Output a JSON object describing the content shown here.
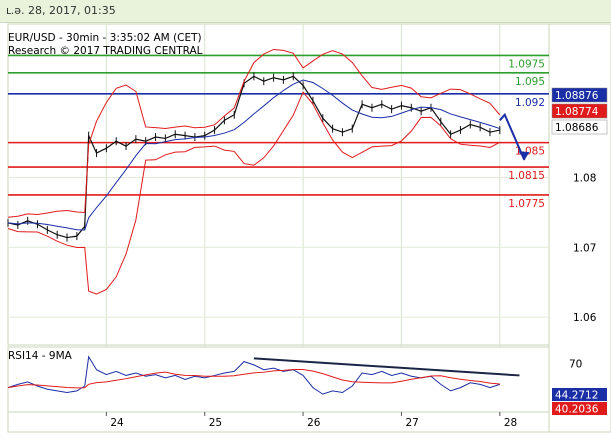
{
  "header": {
    "date": "ւ.ə. 28, 2017, 01:35"
  },
  "chart_data": {
    "type": "line",
    "title": "EUR/USD - 30min - 3:35:02 AM (CET)",
    "subtitle": "Research © 2017 TRADING CENTRAL",
    "ylim": [
      1.056,
      1.102
    ],
    "y_ticks": [
      1.06,
      1.07,
      1.08
    ],
    "x_ticks": [
      "24",
      "25",
      "26",
      "27",
      "28"
    ],
    "price_series": [
      {
        "x": 0.0,
        "y": 1.0735
      },
      {
        "x": 0.1,
        "y": 1.0732
      },
      {
        "x": 0.2,
        "y": 1.0738
      },
      {
        "x": 0.3,
        "y": 1.0733
      },
      {
        "x": 0.4,
        "y": 1.0725
      },
      {
        "x": 0.5,
        "y": 1.0718
      },
      {
        "x": 0.6,
        "y": 1.0714
      },
      {
        "x": 0.7,
        "y": 1.0716
      },
      {
        "x": 0.78,
        "y": 1.073
      },
      {
        "x": 0.82,
        "y": 1.086
      },
      {
        "x": 0.9,
        "y": 1.0835
      },
      {
        "x": 1.0,
        "y": 1.0842
      },
      {
        "x": 1.1,
        "y": 1.0852
      },
      {
        "x": 1.2,
        "y": 1.0845
      },
      {
        "x": 1.3,
        "y": 1.0855
      },
      {
        "x": 1.4,
        "y": 1.0852
      },
      {
        "x": 1.5,
        "y": 1.0858
      },
      {
        "x": 1.6,
        "y": 1.0856
      },
      {
        "x": 1.7,
        "y": 1.0862
      },
      {
        "x": 1.8,
        "y": 1.086
      },
      {
        "x": 1.9,
        "y": 1.0858
      },
      {
        "x": 2.0,
        "y": 1.086
      },
      {
        "x": 2.1,
        "y": 1.0868
      },
      {
        "x": 2.2,
        "y": 1.0882
      },
      {
        "x": 2.3,
        "y": 1.089
      },
      {
        "x": 2.4,
        "y": 1.0935
      },
      {
        "x": 2.5,
        "y": 1.0945
      },
      {
        "x": 2.6,
        "y": 1.0938
      },
      {
        "x": 2.7,
        "y": 1.0943
      },
      {
        "x": 2.8,
        "y": 1.094
      },
      {
        "x": 2.9,
        "y": 1.0945
      },
      {
        "x": 3.0,
        "y": 1.0932
      },
      {
        "x": 3.1,
        "y": 1.091
      },
      {
        "x": 3.2,
        "y": 1.0885
      },
      {
        "x": 3.3,
        "y": 1.087
      },
      {
        "x": 3.4,
        "y": 1.0865
      },
      {
        "x": 3.5,
        "y": 1.087
      },
      {
        "x": 3.6,
        "y": 1.0905
      },
      {
        "x": 3.7,
        "y": 1.09
      },
      {
        "x": 3.8,
        "y": 1.0905
      },
      {
        "x": 3.9,
        "y": 1.0898
      },
      {
        "x": 4.0,
        "y": 1.0903
      },
      {
        "x": 4.1,
        "y": 1.09
      },
      {
        "x": 4.2,
        "y": 1.0895
      },
      {
        "x": 4.3,
        "y": 1.09
      },
      {
        "x": 4.4,
        "y": 1.088
      },
      {
        "x": 4.5,
        "y": 1.0862
      },
      {
        "x": 4.6,
        "y": 1.0868
      },
      {
        "x": 4.7,
        "y": 1.0876
      },
      {
        "x": 4.8,
        "y": 1.0872
      },
      {
        "x": 4.9,
        "y": 1.0865
      },
      {
        "x": 5.0,
        "y": 1.0868
      }
    ],
    "levels": [
      {
        "label": "1.0975",
        "value": 1.0975,
        "color": "#2e9e2e"
      },
      {
        "label": "1.095",
        "value": 1.095,
        "color": "#2e9e2e"
      },
      {
        "label": "1.092",
        "value": 1.092,
        "color": "#1a2ea6"
      },
      {
        "label": "1.085",
        "value": 1.085,
        "color": "#e01b1b"
      },
      {
        "label": "1.0815",
        "value": 1.0815,
        "color": "#e01b1b"
      },
      {
        "label": "1.0775",
        "value": 1.0775,
        "color": "#e01b1b"
      }
    ],
    "price_badges": [
      {
        "label": "1.08876",
        "color": "#1a2ea6",
        "text_color": "#ffffff"
      },
      {
        "label": "1.08774",
        "color": "#e01b1b",
        "text_color": "#ffffff"
      },
      {
        "label": "1.08686",
        "color": "#ffffff",
        "text_color": "#000000"
      }
    ],
    "forecast_arrow": {
      "from": {
        "x": 5.05,
        "y": 1.089
      },
      "to": {
        "x": 5.25,
        "y": 1.0825
      },
      "color": "#1a2ea6"
    },
    "rsi": {
      "title": "RSI14 - 9MA",
      "ylim": [
        10,
        90
      ],
      "y_ticks": [
        70
      ],
      "badges": [
        {
          "label": "44.2712",
          "color": "#1a2ea6",
          "text_color": "#ffffff"
        },
        {
          "label": "40.2036",
          "color": "#e01b1b",
          "text_color": "#ffffff"
        }
      ],
      "series": [
        {
          "x": 0.0,
          "y": 40
        },
        {
          "x": 0.1,
          "y": 44
        },
        {
          "x": 0.2,
          "y": 47
        },
        {
          "x": 0.3,
          "y": 42
        },
        {
          "x": 0.4,
          "y": 38
        },
        {
          "x": 0.5,
          "y": 36
        },
        {
          "x": 0.6,
          "y": 34
        },
        {
          "x": 0.7,
          "y": 36
        },
        {
          "x": 0.78,
          "y": 42
        },
        {
          "x": 0.82,
          "y": 78
        },
        {
          "x": 0.9,
          "y": 62
        },
        {
          "x": 1.0,
          "y": 56
        },
        {
          "x": 1.1,
          "y": 60
        },
        {
          "x": 1.2,
          "y": 55
        },
        {
          "x": 1.3,
          "y": 58
        },
        {
          "x": 1.4,
          "y": 54
        },
        {
          "x": 1.5,
          "y": 56
        },
        {
          "x": 1.6,
          "y": 52
        },
        {
          "x": 1.7,
          "y": 55
        },
        {
          "x": 1.8,
          "y": 50
        },
        {
          "x": 1.9,
          "y": 54
        },
        {
          "x": 2.0,
          "y": 52
        },
        {
          "x": 2.1,
          "y": 55
        },
        {
          "x": 2.2,
          "y": 58
        },
        {
          "x": 2.3,
          "y": 60
        },
        {
          "x": 2.4,
          "y": 72
        },
        {
          "x": 2.5,
          "y": 68
        },
        {
          "x": 2.6,
          "y": 62
        },
        {
          "x": 2.7,
          "y": 64
        },
        {
          "x": 2.8,
          "y": 60
        },
        {
          "x": 2.9,
          "y": 62
        },
        {
          "x": 3.0,
          "y": 55
        },
        {
          "x": 3.1,
          "y": 40
        },
        {
          "x": 3.2,
          "y": 32
        },
        {
          "x": 3.3,
          "y": 36
        },
        {
          "x": 3.4,
          "y": 34
        },
        {
          "x": 3.5,
          "y": 42
        },
        {
          "x": 3.6,
          "y": 58
        },
        {
          "x": 3.7,
          "y": 56
        },
        {
          "x": 3.8,
          "y": 60
        },
        {
          "x": 3.9,
          "y": 55
        },
        {
          "x": 4.0,
          "y": 58
        },
        {
          "x": 4.1,
          "y": 54
        },
        {
          "x": 4.2,
          "y": 52
        },
        {
          "x": 4.3,
          "y": 54
        },
        {
          "x": 4.4,
          "y": 44
        },
        {
          "x": 4.5,
          "y": 36
        },
        {
          "x": 4.6,
          "y": 40
        },
        {
          "x": 4.7,
          "y": 46
        },
        {
          "x": 4.8,
          "y": 44
        },
        {
          "x": 4.9,
          "y": 40
        },
        {
          "x": 5.0,
          "y": 44
        }
      ],
      "trendline": {
        "from": {
          "x": 2.5,
          "y": 76
        },
        "to": {
          "x": 5.2,
          "y": 55
        },
        "color": "#1a2545"
      }
    }
  }
}
